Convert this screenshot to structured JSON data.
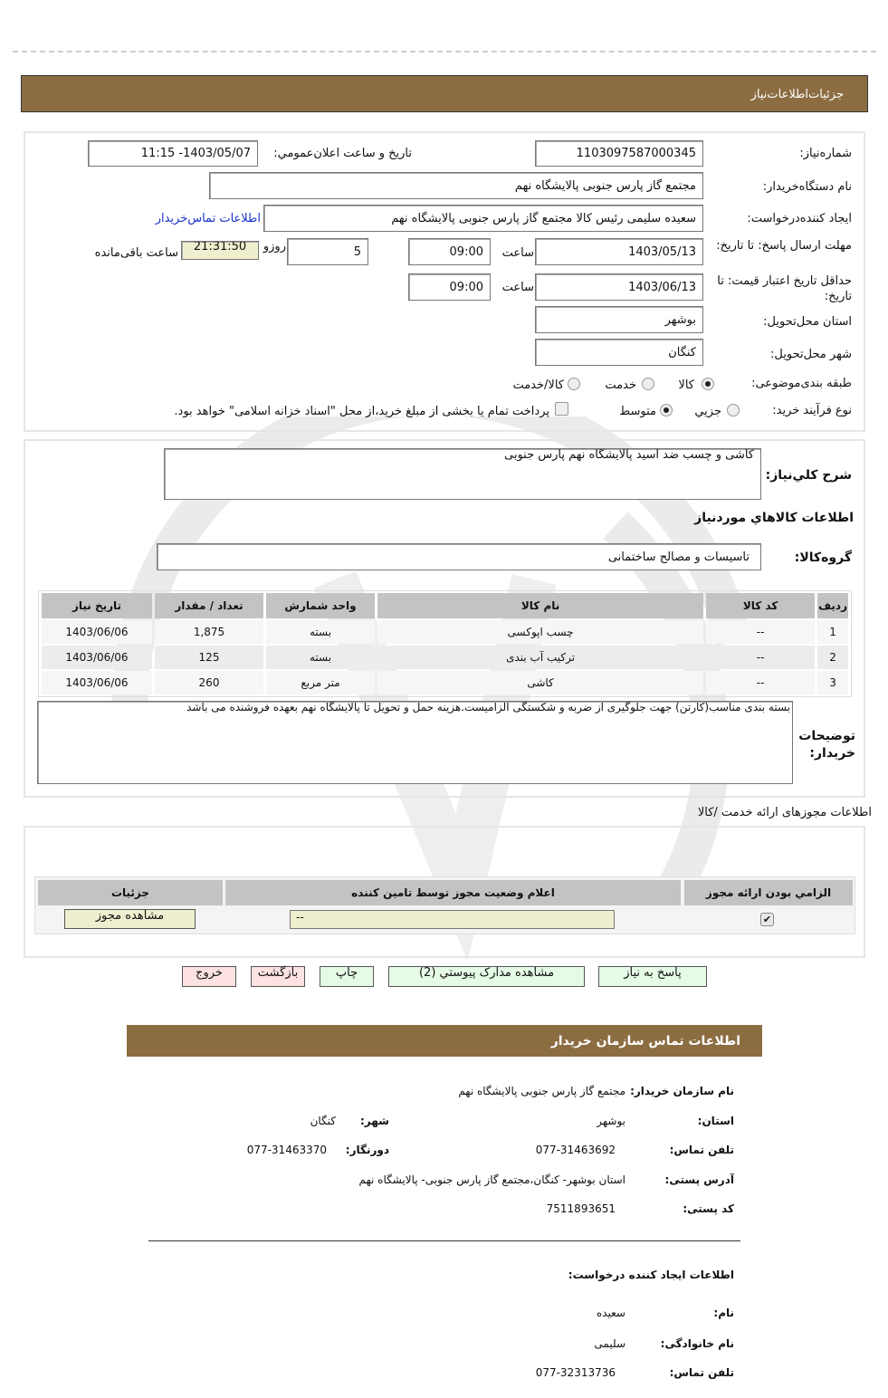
{
  "header": {
    "title": "جزئیات‌اطلاعات‌نیاز"
  },
  "form": {
    "need_number_label": "شماره‌نیاز:",
    "need_number": "1103097587000345",
    "announce_label": "تاریخ و ساعت اعلان‌عمومي:",
    "announce_value": "1403/05/07- 11:15",
    "buyer_org_label": "نام دستگاه‌خریدار:",
    "buyer_org": "مجتمع گاز پارس جنوبی پالایشگاه نهم",
    "creator_label": "ایجاد کننده‌درخواست:",
    "creator": "سعیده سلیمی رئیس کالا مجتمع گاز پارس جنوبی پالایشگاه نهم",
    "contact_link": "اطلاعات تماس‌خریدار",
    "deadline_label": "مهلت ارسال پاسخ: تا تاریخ:",
    "deadline_date": "1403/05/13",
    "time_label": "ساعت",
    "deadline_time": "09:00",
    "days": "5",
    "days_label": "روزو",
    "remaining": "21:31:50",
    "remaining_label": "ساعت باقی‌مانده",
    "validity_label": "حداقل تاریخ اعتبار قیمت: تا تاریخ:",
    "validity_date": "1403/06/13",
    "validity_time": "09:00",
    "province_label": "استان محل‌تحویل:",
    "province": "بوشهر",
    "city_label": "شهر محل‌تحویل:",
    "city": "کنگان",
    "category_label": "طبقه بندی‌موضوعی:",
    "category_options": [
      "کالا",
      "خدمت",
      "کالا/خدمت"
    ],
    "category_selected": "کالا",
    "process_label": "نوع فرآیند خرید:",
    "process_options": [
      "جزيي",
      "متوسط"
    ],
    "process_selected": "متوسط",
    "treasury_note": "پرداخت تمام یا بخشی از مبلغ خرید،از محل \"اسناد خزانه اسلامی\" خواهد بود."
  },
  "goods": {
    "summary_label": "شرح کلي‌نياز:",
    "summary": "کاشی و چسب ضد اسید پالایشگاه نهم پارس جنوبی",
    "section_title": "اطلاعات کالاهاي مورد‌نياز",
    "group_label": "گروه‌کالا:",
    "group": "تاسیسات و مصالح ساختمانی",
    "columns": [
      "ردیف",
      "کد کالا",
      "نام کالا",
      "واحد شمارش",
      "تعداد / مقدار",
      "تاریخ نیاز"
    ],
    "rows": [
      [
        "1",
        "--",
        "چسب اپوکسی",
        "بسته",
        "1,875",
        "1403/06/06"
      ],
      [
        "2",
        "--",
        "ترکیب آب بندی",
        "بسته",
        "125",
        "1403/06/06"
      ],
      [
        "3",
        "--",
        "کاشی",
        "متر مربع",
        "260",
        "1403/06/06"
      ]
    ],
    "notes_label": "توضیحات خریدار:",
    "notes": "بسته بندی مناسب(کارتن) جهت جلوگیری از ضربه و شکستگی الزامیست.هزینه حمل و تحویل تا پالایشگاه نهم بعهده فروشنده می باشد"
  },
  "permits": {
    "title": "اطلاعات مجوزهای ارائه خدمت /کالا",
    "columns": [
      "الزامي بودن  ارائه مجوز",
      "اعلام وضعیت مجوز توسط تامین کننده",
      "جزئیات"
    ],
    "required": true,
    "status": "--",
    "view_button": "مشاهده مجوز"
  },
  "actions": {
    "reply": "پاسخ به نیاز",
    "attachments": "مشاهده مدارک پیوستي (2)",
    "print": "چاپ",
    "back": "بازگشت",
    "exit": "خروج"
  },
  "contact": {
    "title": "اطلاعات تماس سازمان خریدار",
    "org_label": "نام سازمان  خریدار:",
    "org": "مجتمع گاز پارس جنوبی  پالایشگاه نهم",
    "province_label": "استان:",
    "province": "بوشهر",
    "city_label": "شهر:",
    "city": "کنگان",
    "phone_label": "تلفن تماس:",
    "phone": "077-31463692",
    "fax_label": "دورنگار:",
    "fax": "077-31463370",
    "address_label": "آدرس پستی:",
    "address": "استان بوشهر- کنگان،مجتمع گاز پارس جنوبی- پالایشگاه نهم",
    "postal_label": "کد پستی:",
    "postal": "7511893651",
    "creator_title": "اطلاعات ایجاد کننده درخواست:",
    "first_name_label": "نام:",
    "first_name": "سعیده",
    "last_name_label": "نام  خانوادگی:",
    "last_name": "سلیمی",
    "creator_phone_label": "تلفن تماس:",
    "creator_phone": "077-32313736"
  },
  "colors": {
    "brown": "#8c6d42",
    "table_header": "#c3c3c3",
    "timer_bg": "#efefcf",
    "green_btn": "#e6fbe6",
    "pink_btn": "#fde2e2",
    "link": "#1a33cc"
  }
}
